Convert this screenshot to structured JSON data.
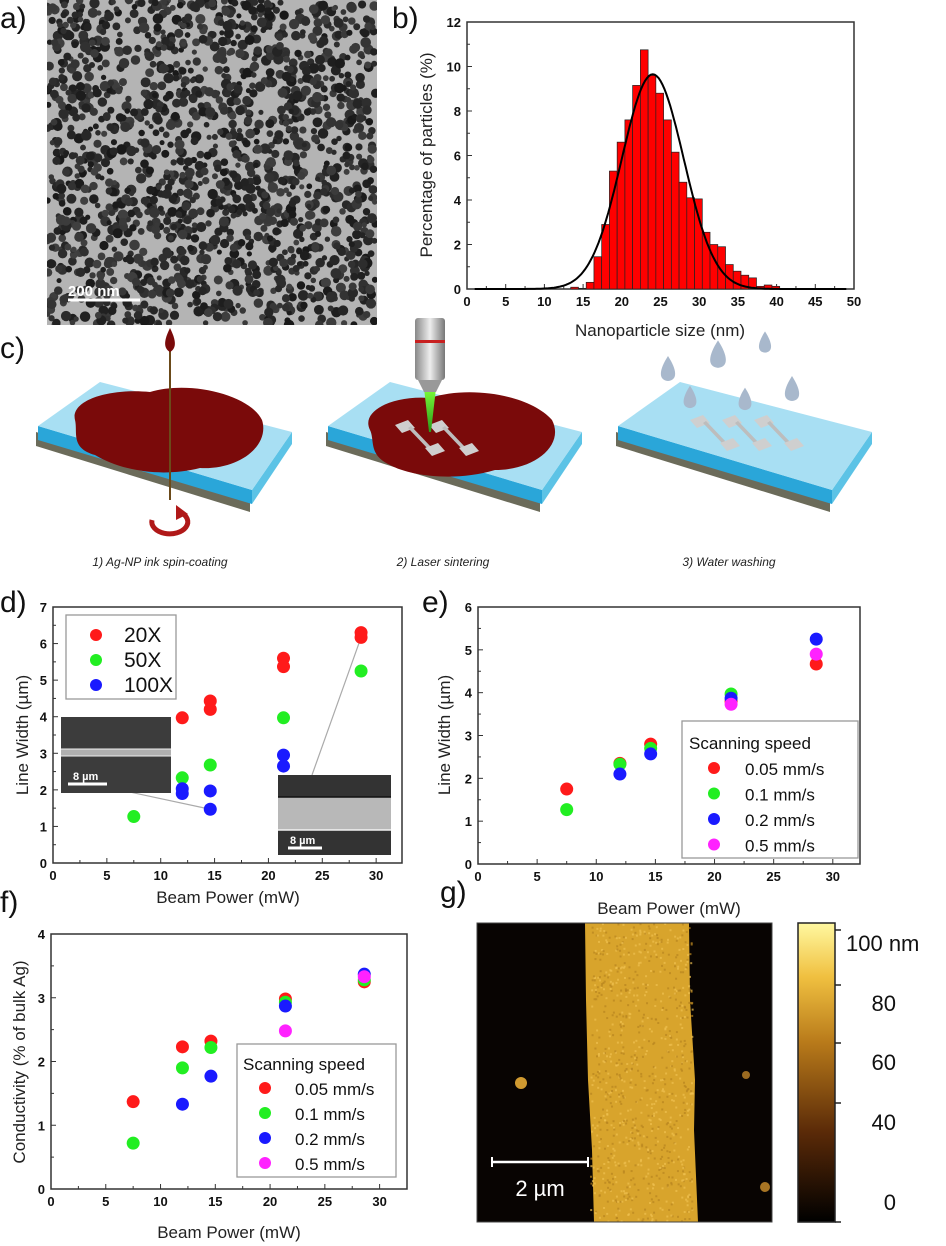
{
  "panel_labels": {
    "a": "a)",
    "b": "b)",
    "c": "c)",
    "d": "d)",
    "e": "e)",
    "f": "f)",
    "g": "g)"
  },
  "panel_a": {
    "scale_bar": "200 nm"
  },
  "panel_c": {
    "steps": [
      "1) Ag-NP ink spin-coating",
      "2) Laser sintering",
      "3) Water washing"
    ]
  },
  "chart_data": [
    {
      "panel": "b",
      "type": "bar",
      "xlabel": "Nanoparticle size (nm)",
      "ylabel": "Percentage of particles (%)",
      "xlim": [
        0,
        50
      ],
      "ylim": [
        0,
        12
      ],
      "xticks": [
        0,
        5,
        10,
        15,
        20,
        25,
        30,
        35,
        40,
        45,
        50
      ],
      "yticks": [
        0,
        2,
        4,
        6,
        8,
        10,
        12
      ],
      "bar_color": "#ff0000",
      "bin_width": 1,
      "bin_centers": [
        13.9,
        14.9,
        15.9,
        16.9,
        17.9,
        18.9,
        19.9,
        20.9,
        21.9,
        22.9,
        23.9,
        24.9,
        25.9,
        26.9,
        27.9,
        28.9,
        29.9,
        30.9,
        31.9,
        32.9,
        33.9,
        34.9,
        35.9,
        36.9,
        37.9,
        38.9,
        39.9
      ],
      "values": [
        0.08,
        0.03,
        0.3,
        1.45,
        2.9,
        5.3,
        6.6,
        7.6,
        9.15,
        10.75,
        9.6,
        8.8,
        7.6,
        6.15,
        4.8,
        4.1,
        4.05,
        2.55,
        2.0,
        1.9,
        1.1,
        0.8,
        0.62,
        0.5,
        0.12,
        0.18,
        0.12
      ],
      "fit": {
        "type": "gaussian",
        "center": 24,
        "peak": 9.65,
        "sigma": 4.0,
        "color": "#000000"
      }
    },
    {
      "panel": "d",
      "type": "scatter",
      "xlabel": "Beam Power (mW)",
      "ylabel": "Line Width (µm)",
      "xlim": [
        0,
        32.4
      ],
      "ylim": [
        0,
        7
      ],
      "xticks": [
        0,
        5,
        10,
        15,
        20,
        25,
        30
      ],
      "yticks": [
        0,
        1,
        2,
        3,
        4,
        5,
        6,
        7
      ],
      "legend_placement": "top-left",
      "series": [
        {
          "name": "20X",
          "color": "#ff1a1a",
          "points": [
            [
              12,
              3.97
            ],
            [
              14.6,
              4.43
            ],
            [
              14.6,
              4.2
            ],
            [
              21.4,
              5.6
            ],
            [
              21.4,
              5.37
            ],
            [
              28.6,
              6.3
            ],
            [
              28.6,
              6.17
            ]
          ]
        },
        {
          "name": "50X",
          "color": "#22ee22",
          "points": [
            [
              7.5,
              1.27
            ],
            [
              12,
              2.33
            ],
            [
              14.6,
              2.68
            ],
            [
              21.4,
              3.97
            ],
            [
              28.6,
              5.25
            ]
          ]
        },
        {
          "name": "100X",
          "color": "#1a1aff",
          "points": [
            [
              12,
              2.03
            ],
            [
              12,
              1.9
            ],
            [
              14.6,
              1.97
            ],
            [
              14.6,
              1.47
            ],
            [
              21.4,
              2.95
            ],
            [
              21.4,
              2.65
            ]
          ]
        }
      ],
      "insets": [
        {
          "scale_bar": "8 µm"
        },
        {
          "scale_bar": "8 µm"
        }
      ]
    },
    {
      "panel": "e",
      "type": "scatter",
      "xlabel": "Beam Power (mW)",
      "ylabel": "Line Width (µm)",
      "xlim": [
        0,
        32.3
      ],
      "ylim": [
        0,
        6
      ],
      "xticks": [
        0,
        5,
        10,
        15,
        20,
        25,
        30
      ],
      "yticks": [
        0,
        1,
        2,
        3,
        4,
        5,
        6
      ],
      "legend_title": "Scanning speed",
      "legend_placement": "bottom-right",
      "series": [
        {
          "name": "0.05 mm/s",
          "color": "#ff1a1a",
          "points": [
            [
              7.5,
              1.75
            ],
            [
              12,
              2.35
            ],
            [
              14.6,
              2.8
            ],
            [
              21.4,
              3.8
            ],
            [
              28.6,
              4.67
            ]
          ]
        },
        {
          "name": "0.1 mm/s",
          "color": "#22ee22",
          "points": [
            [
              7.5,
              1.27
            ],
            [
              12,
              2.33
            ],
            [
              14.6,
              2.7
            ],
            [
              21.4,
              3.97
            ]
          ]
        },
        {
          "name": "0.2 mm/s",
          "color": "#1a1aff",
          "points": [
            [
              12,
              2.1
            ],
            [
              14.6,
              2.57
            ],
            [
              21.4,
              3.87
            ],
            [
              28.6,
              5.25
            ]
          ]
        },
        {
          "name": "0.5 mm/s",
          "color": "#ff22ff",
          "points": [
            [
              21.4,
              3.73
            ],
            [
              28.6,
              4.9
            ]
          ]
        }
      ]
    },
    {
      "panel": "f",
      "type": "scatter",
      "xlabel": "Beam Power (mW)",
      "ylabel": "Conductivity (% of bulk Ag)",
      "xlim": [
        0,
        32.5
      ],
      "ylim": [
        0,
        4
      ],
      "xticks": [
        0,
        5,
        10,
        15,
        20,
        25,
        30
      ],
      "yticks": [
        0,
        1,
        2,
        3,
        4
      ],
      "legend_title": "Scanning speed",
      "legend_placement": "bottom-right",
      "series": [
        {
          "name": "0.05 mm/s",
          "color": "#ff1a1a",
          "points": [
            [
              7.5,
              1.37
            ],
            [
              12,
              2.23
            ],
            [
              14.6,
              2.32
            ],
            [
              21.4,
              2.98
            ],
            [
              28.6,
              3.25
            ]
          ]
        },
        {
          "name": "0.1 mm/s",
          "color": "#22ee22",
          "points": [
            [
              7.5,
              0.72
            ],
            [
              12,
              1.9
            ],
            [
              14.6,
              2.22
            ],
            [
              21.4,
              2.93
            ],
            [
              28.6,
              3.28
            ]
          ]
        },
        {
          "name": "0.2 mm/s",
          "color": "#1a1aff",
          "points": [
            [
              12,
              1.33
            ],
            [
              14.6,
              1.77
            ],
            [
              21.4,
              2.87
            ],
            [
              28.6,
              3.37
            ]
          ]
        },
        {
          "name": "0.5 mm/s",
          "color": "#ff22ff",
          "points": [
            [
              21.4,
              2.48
            ],
            [
              28.6,
              3.33
            ]
          ]
        }
      ]
    },
    {
      "panel": "g",
      "type": "heatmap",
      "colorbar_ticks": [
        "100 nm",
        "80",
        "60",
        "40",
        "0"
      ],
      "colormap": [
        "#000000",
        "#5a2a08",
        "#b87a1a",
        "#f0c040",
        "#fff8a0"
      ],
      "scale_bar": "2 µm"
    }
  ]
}
